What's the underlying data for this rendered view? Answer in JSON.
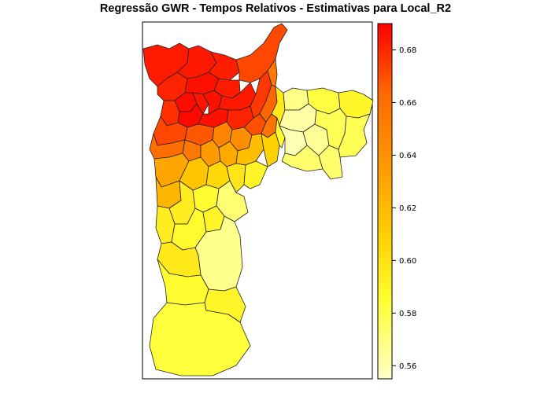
{
  "title": "Regressão GWR - Tempos Relativos - Estimativas para Local_R2",
  "legend": {
    "min": 0.555,
    "max": 0.69,
    "colors": [
      "#ffffc8",
      "#ffff33",
      "#ffd000",
      "#ff9900",
      "#ff6a00",
      "#ff0000"
    ],
    "ticks": [
      {
        "value": 0.56,
        "label": "0.56"
      },
      {
        "value": 0.58,
        "label": "0.58"
      },
      {
        "value": 0.6,
        "label": "0.60"
      },
      {
        "value": 0.62,
        "label": "0.62"
      },
      {
        "value": 0.64,
        "label": "0.64"
      },
      {
        "value": 0.66,
        "label": "0.66"
      },
      {
        "value": 0.68,
        "label": "0.68"
      }
    ]
  },
  "map_regions": [
    {
      "id": "nw-1",
      "value": 0.683
    },
    {
      "id": "nw-2",
      "value": 0.681
    },
    {
      "id": "n-1",
      "value": 0.684
    },
    {
      "id": "n-2",
      "value": 0.682
    },
    {
      "id": "ne-spike",
      "value": 0.672
    },
    {
      "id": "n-3",
      "value": 0.686
    },
    {
      "id": "n-4",
      "value": 0.683
    },
    {
      "id": "nc-1",
      "value": 0.687
    },
    {
      "id": "nc-2",
      "value": 0.685
    },
    {
      "id": "nc-3",
      "value": 0.686
    },
    {
      "id": "nc-4",
      "value": 0.684
    },
    {
      "id": "c-1",
      "value": 0.688
    },
    {
      "id": "c-2",
      "value": 0.686
    },
    {
      "id": "c-3",
      "value": 0.681
    },
    {
      "id": "c-4",
      "value": 0.676
    },
    {
      "id": "c-5",
      "value": 0.67
    },
    {
      "id": "ce-1",
      "value": 0.664
    },
    {
      "id": "ce-2",
      "value": 0.658
    },
    {
      "id": "e-orange",
      "value": 0.655
    },
    {
      "id": "w-1",
      "value": 0.678
    },
    {
      "id": "w-2",
      "value": 0.672
    },
    {
      "id": "w-3",
      "value": 0.668
    },
    {
      "id": "sw-1",
      "value": 0.66
    },
    {
      "id": "sw-2",
      "value": 0.655
    },
    {
      "id": "s-1",
      "value": 0.648
    },
    {
      "id": "s-2",
      "value": 0.642
    },
    {
      "id": "s-3",
      "value": 0.635
    },
    {
      "id": "s-4",
      "value": 0.628
    },
    {
      "id": "se-1",
      "value": 0.618
    },
    {
      "id": "se-2",
      "value": 0.608
    },
    {
      "id": "e-yellow-1",
      "value": 0.596
    },
    {
      "id": "e-yellow-2",
      "value": 0.585
    },
    {
      "id": "e-pale-1",
      "value": 0.568
    },
    {
      "id": "e-pale-2",
      "value": 0.562
    },
    {
      "id": "e-pale-3",
      "value": 0.559
    },
    {
      "id": "e-pale-4",
      "value": 0.565
    },
    {
      "id": "e-pale-5",
      "value": 0.573
    },
    {
      "id": "e-yel-3",
      "value": 0.582
    },
    {
      "id": "e-yel-4",
      "value": 0.589
    },
    {
      "id": "e-yel-5",
      "value": 0.578
    },
    {
      "id": "sw-o1",
      "value": 0.63
    },
    {
      "id": "sw-o2",
      "value": 0.622
    },
    {
      "id": "sw-o3",
      "value": 0.614
    },
    {
      "id": "sm-1",
      "value": 0.605
    },
    {
      "id": "sm-2",
      "value": 0.598
    },
    {
      "id": "sm-3",
      "value": 0.59
    },
    {
      "id": "sm-pale",
      "value": 0.567
    },
    {
      "id": "sm-pale-2",
      "value": 0.572
    },
    {
      "id": "sm-4",
      "value": 0.594
    },
    {
      "id": "sm-5",
      "value": 0.587
    },
    {
      "id": "s-long-1",
      "value": 0.596
    },
    {
      "id": "s-long-2",
      "value": 0.586
    },
    {
      "id": "s-big-pale",
      "value": 0.563
    },
    {
      "id": "s-far-1",
      "value": 0.59
    },
    {
      "id": "s-far-2",
      "value": 0.583
    },
    {
      "id": "s-tip",
      "value": 0.579
    }
  ]
}
